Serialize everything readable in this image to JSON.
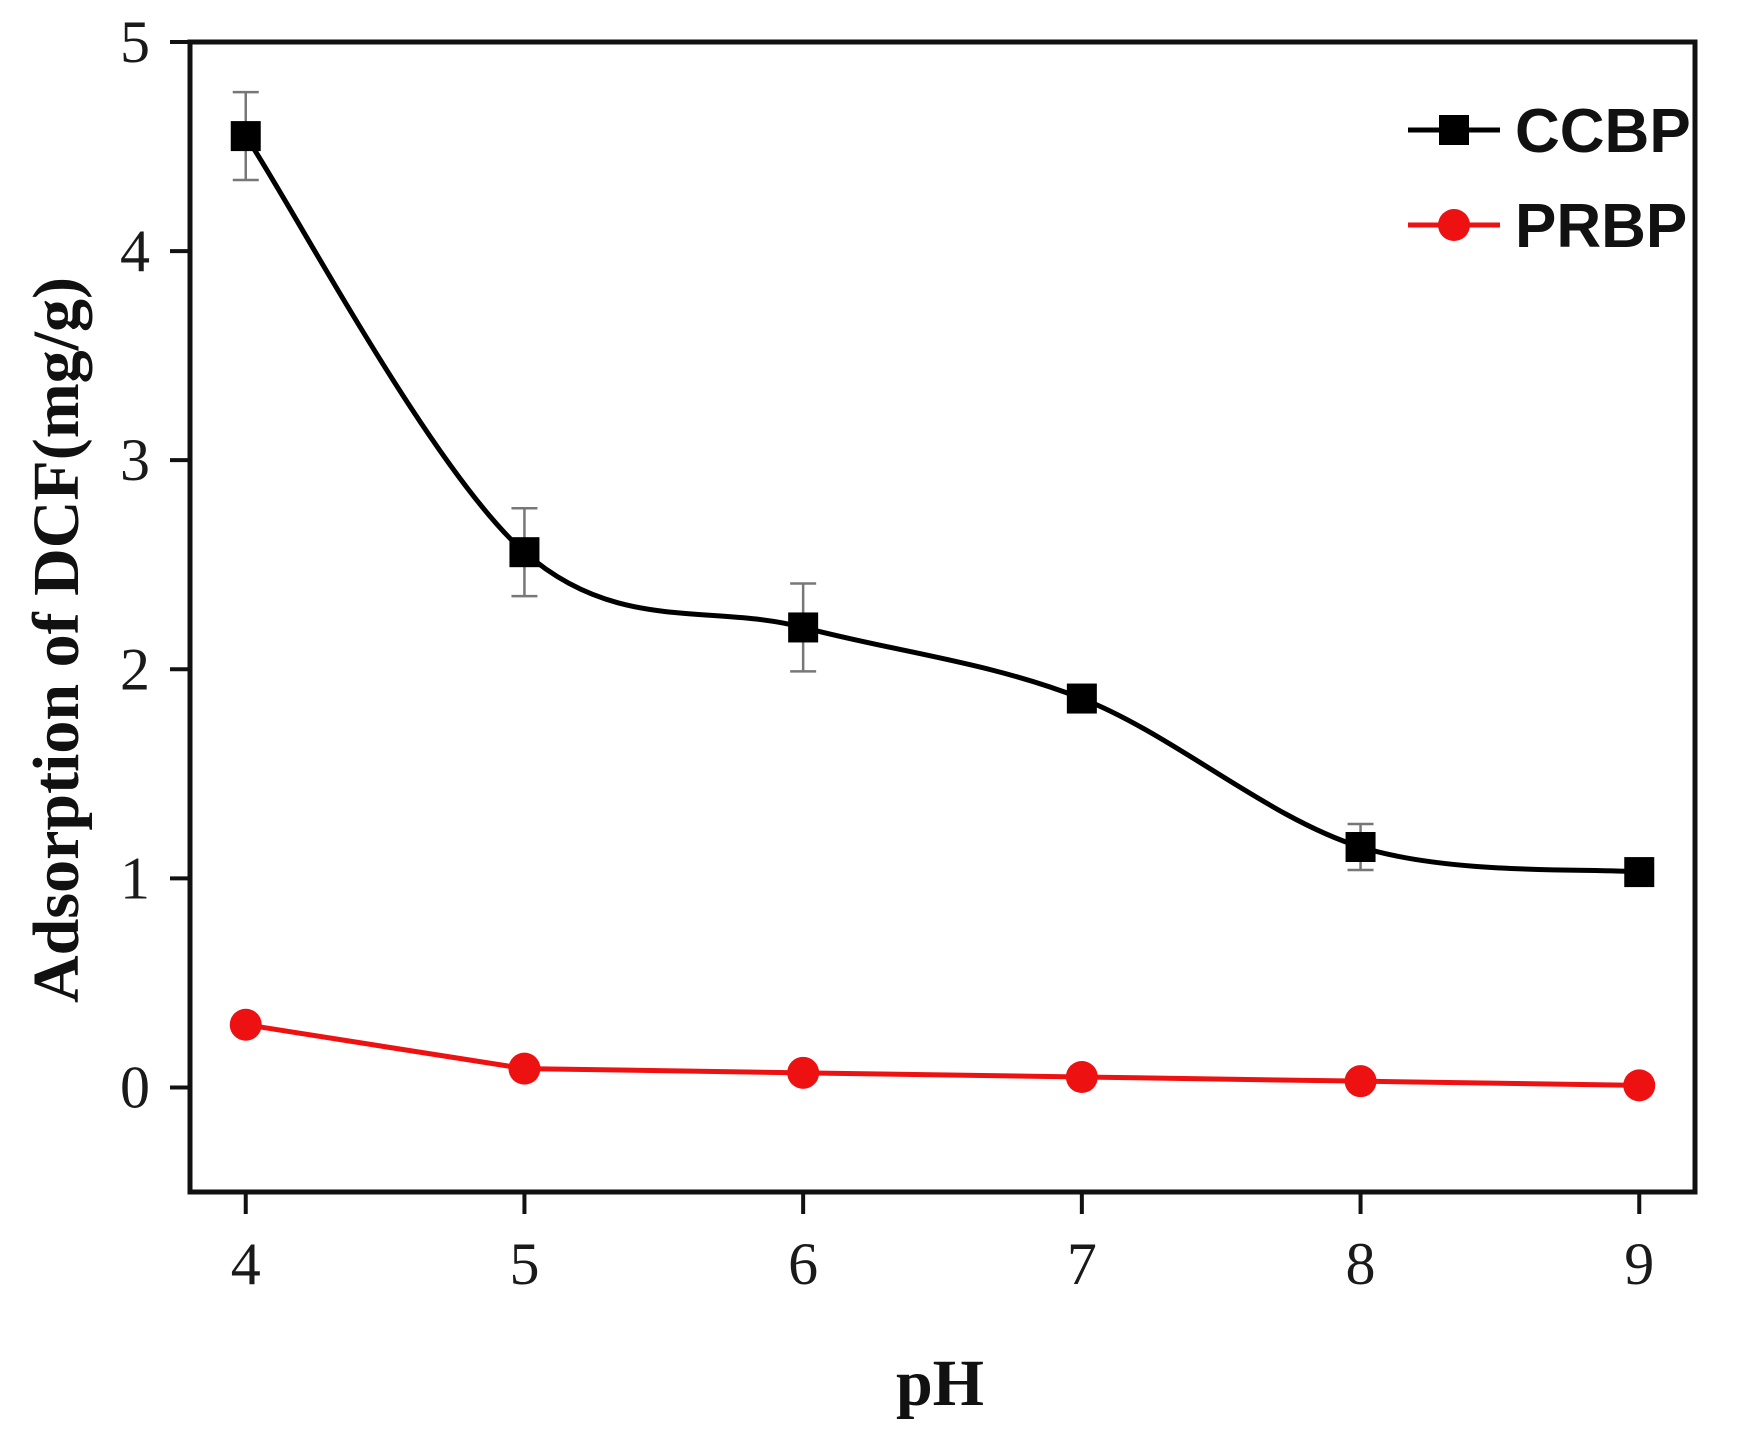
{
  "chart_data": {
    "type": "line",
    "title": "",
    "xlabel": "pH",
    "ylabel": "Adsorption of DCF(mg/g)",
    "xlim": [
      3.8,
      9.2
    ],
    "ylim": [
      -0.5,
      5
    ],
    "x_ticks": [
      4,
      5,
      6,
      7,
      8,
      9
    ],
    "y_ticks": [
      0,
      1,
      2,
      3,
      4,
      5
    ],
    "grid": false,
    "legend_position": "top-right",
    "x": [
      4,
      5,
      6,
      7,
      8,
      9
    ],
    "series": [
      {
        "name": "CCBP",
        "color": "#000000",
        "marker": "square",
        "smooth": true,
        "values": [
          4.55,
          2.56,
          2.2,
          1.86,
          1.15,
          1.03
        ],
        "errors": [
          0.21,
          0.21,
          0.21,
          0.03,
          0.11,
          0.03
        ]
      },
      {
        "name": "PRBP",
        "color": "#ee1111",
        "marker": "circle",
        "smooth": false,
        "values": [
          0.3,
          0.09,
          0.07,
          0.05,
          0.03,
          0.01
        ],
        "errors": [
          0,
          0,
          0,
          0,
          0,
          0
        ]
      }
    ]
  }
}
